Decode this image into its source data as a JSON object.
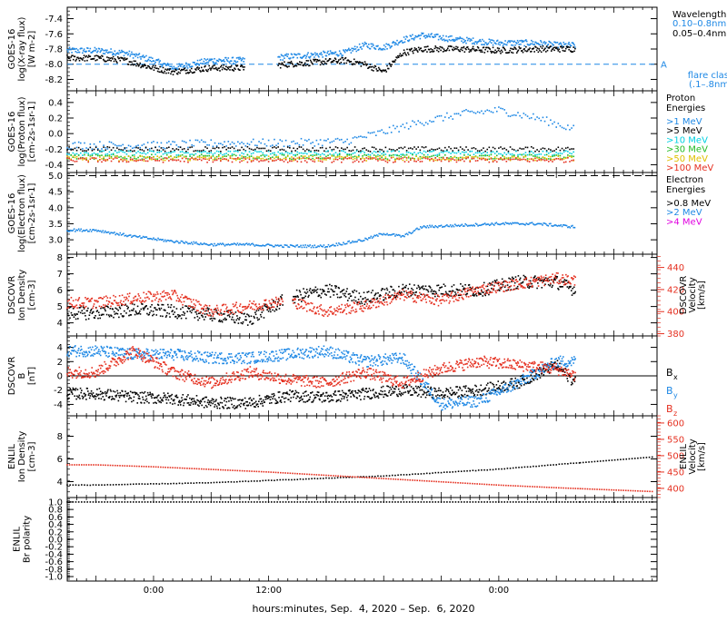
{
  "figure": {
    "xlabel": "hours:minutes, Sep.  4, 2020 – Sep.  6, 2020",
    "x_ticks": [
      "0:00",
      "12:00",
      "0:00"
    ]
  },
  "colors": {
    "black": "#000000",
    "blue": "#1e88e5",
    "cyan": "#00d0e0",
    "green": "#22bb22",
    "yellow": "#e0c000",
    "red": "#e53020",
    "magenta": "#e000e0",
    "dashed_blue": "#1e88e5"
  },
  "chart_data": [
    {
      "type": "scatter",
      "panel": "xray",
      "ylabel": [
        "GOES-16",
        "log(X-ray flux)",
        "[W m-2]"
      ],
      "yticks": [
        -7.4,
        -7.6,
        -7.8,
        -8.0,
        -8.2
      ],
      "ylim": [
        -8.35,
        -7.25
      ],
      "legend_title": "Wavelength",
      "legend": [
        {
          "label": "0.10–0.8nm",
          "color": "#1e88e5"
        },
        {
          "label": "0.05–0.4nm",
          "color": "#000000"
        }
      ],
      "flare_line": {
        "value": -8.0,
        "letter": "A",
        "label": [
          "flare class",
          "(.1–.8nm)"
        ]
      },
      "series": [
        {
          "name": "0.10–0.8nm",
          "color": "#1e88e5",
          "x": [
            -6,
            -3,
            0,
            2,
            6,
            10,
            14,
            20,
            22,
            24,
            26,
            28,
            30,
            32,
            36,
            40,
            42,
            44
          ],
          "y": [
            -7.82,
            -7.85,
            -7.95,
            -8.05,
            -7.95,
            -7.95,
            -7.9,
            -7.85,
            -7.75,
            -7.78,
            -7.68,
            -7.62,
            -7.65,
            -7.68,
            -7.72,
            -7.72,
            -7.75,
            -7.75
          ]
        },
        {
          "name": "0.05–0.4nm",
          "color": "#000000",
          "x": [
            -6,
            -3,
            0,
            2,
            6,
            10,
            14,
            20,
            22,
            24,
            26,
            28,
            30,
            32,
            36,
            40,
            42,
            44
          ],
          "y": [
            -7.92,
            -7.95,
            -8.05,
            -8.1,
            -8.05,
            -8.05,
            -8.0,
            -7.95,
            -8.0,
            -8.1,
            -7.85,
            -7.8,
            -7.8,
            -7.8,
            -7.82,
            -7.8,
            -7.8,
            -7.8
          ]
        }
      ]
    },
    {
      "type": "scatter",
      "panel": "proton",
      "ylabel": [
        "GOES-16",
        "log(Proton flux)",
        "[cm-2s-1sr-1]"
      ],
      "yticks": [
        0.4,
        0.2,
        0.0,
        -0.2,
        -0.4
      ],
      "ylim": [
        -0.5,
        0.55
      ],
      "legend_title": [
        "Proton",
        "Energies"
      ],
      "legend": [
        {
          "label": ">1 MeV",
          "color": "#1e88e5"
        },
        {
          "label": ">5 MeV",
          "color": "#000000"
        },
        {
          "label": ">10 MeV",
          "color": "#00d0e0"
        },
        {
          "label": ">30 MeV",
          "color": "#22bb22"
        },
        {
          "label": ">50 MeV",
          "color": "#e0c000"
        },
        {
          "label": ">100 MeV",
          "color": "#e53020"
        }
      ],
      "series": [
        {
          "name": ">1 MeV",
          "color": "#1e88e5",
          "x": [
            -6,
            0,
            8,
            14,
            20,
            24,
            28,
            32,
            36,
            40,
            44
          ],
          "y": [
            -0.15,
            -0.15,
            -0.12,
            -0.12,
            -0.1,
            0.02,
            0.15,
            0.25,
            0.3,
            0.2,
            0.05
          ]
        },
        {
          "name": ">5 MeV",
          "color": "#000000",
          "x": [
            -6,
            44
          ],
          "y": [
            -0.2,
            -0.2
          ]
        },
        {
          "name": ">10 MeV",
          "color": "#00d0e0",
          "x": [
            -6,
            44
          ],
          "y": [
            -0.25,
            -0.25
          ]
        },
        {
          "name": ">30 MeV",
          "color": "#22bb22",
          "x": [
            -6,
            44
          ],
          "y": [
            -0.3,
            -0.3
          ]
        },
        {
          "name": ">50 MeV",
          "color": "#e0c000",
          "x": [
            -6,
            44
          ],
          "y": [
            -0.32,
            -0.32
          ]
        },
        {
          "name": ">100 MeV",
          "color": "#e53020",
          "x": [
            -6,
            44
          ],
          "y": [
            -0.34,
            -0.34
          ]
        }
      ]
    },
    {
      "type": "scatter",
      "panel": "electron",
      "ylabel": [
        "GOES-16",
        "log(Electron flux)",
        "[cm-2s-1sr-1]"
      ],
      "yticks": [
        5.0,
        4.5,
        4.0,
        3.5,
        3.0
      ],
      "ylim": [
        2.55,
        5.1
      ],
      "legend_title": [
        "Electron",
        "Energies"
      ],
      "legend": [
        {
          "label": ">0.8 MeV",
          "color": "#000000"
        },
        {
          "label": ">2 MeV",
          "color": "#1e88e5"
        },
        {
          "label": ">4 MeV",
          "color": "#e000e0"
        }
      ],
      "dashed_line": 5.0,
      "series": [
        {
          "name": ">2 MeV",
          "color": "#1e88e5",
          "x": [
            -6,
            -2,
            2,
            6,
            10,
            14,
            18,
            22,
            24,
            26,
            28,
            32,
            36,
            40,
            44
          ],
          "y": [
            3.3,
            3.1,
            2.95,
            2.85,
            2.85,
            2.8,
            2.8,
            3.0,
            3.2,
            3.1,
            3.4,
            3.45,
            3.5,
            3.5,
            3.4
          ]
        }
      ]
    },
    {
      "type": "scatter",
      "panel": "dscovr_density",
      "ylabel": [
        "DSCOVR",
        "Ion Density",
        "[cm-3]"
      ],
      "yticks": [
        8,
        7,
        6,
        5,
        4
      ],
      "ylim": [
        3.2,
        8.2
      ],
      "y2label": [
        "DSCOVR",
        "Velocity",
        "[km/s]"
      ],
      "y2ticks": [
        440,
        420,
        400,
        380
      ],
      "y2lim": [
        378,
        452
      ],
      "series": [
        {
          "name": "Ion Density",
          "color": "#000000",
          "x": [
            -6,
            -2,
            2,
            6,
            10,
            14,
            18,
            22,
            26,
            30,
            34,
            38,
            42,
            44
          ],
          "y": [
            4.6,
            4.8,
            4.7,
            4.5,
            4.2,
            5.5,
            6.0,
            5.5,
            6.0,
            6.0,
            6.0,
            6.5,
            6.5,
            6.0
          ]
        },
        {
          "name": "Velocity",
          "color": "#e53020",
          "axis": "y2",
          "x": [
            -6,
            -2,
            2,
            6,
            10,
            14,
            18,
            22,
            26,
            30,
            34,
            38,
            42,
            44
          ],
          "y": [
            408,
            412,
            415,
            400,
            405,
            410,
            400,
            405,
            415,
            410,
            420,
            425,
            430,
            428
          ]
        }
      ]
    },
    {
      "type": "scatter",
      "panel": "dscovr_b",
      "ylabel": [
        "DSCOVR",
        "B",
        "[nT]"
      ],
      "yticks": [
        4,
        2,
        0,
        -2,
        -4
      ],
      "ylim": [
        -5.6,
        5.6
      ],
      "zero_line": true,
      "legend": [
        {
          "label": "B",
          "sub": "x",
          "color": "#000000"
        },
        {
          "label": "B",
          "sub": "y",
          "color": "#1e88e5"
        },
        {
          "label": "B",
          "sub": "z",
          "color": "#e53020"
        }
      ],
      "series": [
        {
          "name": "Bx",
          "color": "#000000",
          "x": [
            -6,
            -2,
            2,
            6,
            10,
            14,
            18,
            22,
            26,
            30,
            34,
            38,
            42,
            44
          ],
          "y": [
            -2.5,
            -3.0,
            -3.2,
            -3.8,
            -3.8,
            -2.8,
            -3.0,
            -2.5,
            -2.0,
            -2.5,
            -2.0,
            -1.0,
            1.5,
            -1.0
          ]
        },
        {
          "name": "By",
          "color": "#1e88e5",
          "x": [
            -6,
            -2,
            2,
            6,
            10,
            14,
            18,
            22,
            26,
            30,
            34,
            38,
            42,
            44
          ],
          "y": [
            3.5,
            3.0,
            3.0,
            2.5,
            2.5,
            3.0,
            3.5,
            2.0,
            2.5,
            -4.0,
            -3.5,
            -1.0,
            2.0,
            2.0
          ]
        },
        {
          "name": "Bz",
          "color": "#e53020",
          "x": [
            -6,
            -2,
            2,
            6,
            10,
            14,
            18,
            22,
            26,
            30,
            34,
            38,
            42,
            44
          ],
          "y": [
            0.5,
            3.5,
            0.5,
            -1.0,
            0.5,
            -0.5,
            -1.0,
            0.5,
            -1.0,
            1.0,
            2.0,
            1.5,
            1.0,
            0.0
          ]
        }
      ]
    },
    {
      "type": "scatter",
      "panel": "enlil_density",
      "ylabel": [
        "ENLIL",
        "Ion Density",
        "[cm-3]"
      ],
      "yticks": [
        8,
        6,
        4
      ],
      "ylim": [
        2.6,
        9.8
      ],
      "y2label": [
        "ENLIL",
        "Velocity",
        "[km/s]"
      ],
      "y2ticks": [
        600,
        550,
        500,
        450,
        400
      ],
      "y2lim": [
        372,
        622
      ],
      "series": [
        {
          "name": "Ion Density",
          "color": "#000000",
          "x": [
            -6,
            0,
            6,
            12,
            18,
            24,
            30,
            36,
            42,
            48,
            54
          ],
          "y": [
            3.7,
            3.8,
            3.9,
            4.1,
            4.3,
            4.5,
            4.8,
            5.1,
            5.5,
            5.9,
            6.3
          ]
        },
        {
          "name": "Velocity",
          "color": "#e53020",
          "axis": "y2",
          "x": [
            -6,
            0,
            6,
            12,
            18,
            24,
            30,
            36,
            42,
            48,
            54
          ],
          "y": [
            472,
            466,
            458,
            450,
            440,
            430,
            420,
            410,
            402,
            395,
            388
          ]
        }
      ]
    },
    {
      "type": "scatter",
      "panel": "enlil_polarity",
      "ylabel": [
        "ENLIL",
        "Br polarity"
      ],
      "yticks": [
        1.0,
        0.8,
        0.6,
        0.4,
        0.2,
        0.0,
        -0.2,
        -0.4,
        -0.6,
        -0.8,
        -1.0
      ],
      "ylim": [
        -1.12,
        1.12
      ],
      "series": [
        {
          "name": "Br polarity",
          "color": "#000000",
          "x": [
            -6,
            54
          ],
          "y": [
            1.0,
            1.0
          ]
        }
      ]
    }
  ]
}
